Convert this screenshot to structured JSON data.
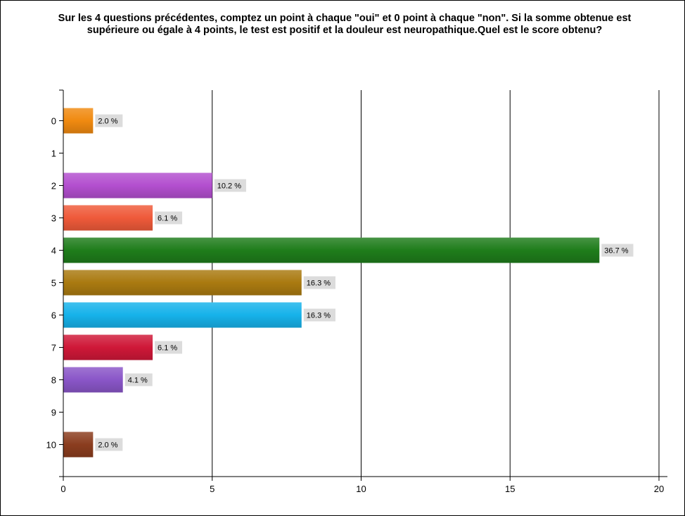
{
  "chart_data": {
    "type": "bar",
    "orientation": "horizontal",
    "title": "Sur les 4 questions précédentes, comptez un point à chaque \"oui\" et 0 point à chaque \"non\". Si la somme obtenue est supérieure ou égale à 4 points, le test est positif et la douleur est neuropathique.Quel est le score obtenu?",
    "categories": [
      "0",
      "1",
      "2",
      "3",
      "4",
      "5",
      "6",
      "7",
      "8",
      "9",
      "10"
    ],
    "values": [
      1,
      0,
      5,
      3,
      18,
      8,
      8,
      3,
      2,
      0,
      1
    ],
    "data_labels": [
      "2.0 %",
      "",
      "10.2 %",
      "6.1 %",
      "36.7 %",
      "16.3 %",
      "16.3 %",
      "6.1 %",
      "4.1 %",
      "",
      "2.0 %"
    ],
    "colors": [
      "#f08a10",
      "",
      "#b34fcf",
      "#ef5a3a",
      "#1f7d1b",
      "#aa7a10",
      "#16b2ea",
      "#cf1838",
      "#8a56c8",
      "",
      "#8b3d1f"
    ],
    "xlim": [
      0,
      20
    ],
    "x_ticks": [
      "0",
      "5",
      "10",
      "15",
      "20"
    ],
    "grid": "vertical",
    "xlabel": "",
    "ylabel": ""
  }
}
